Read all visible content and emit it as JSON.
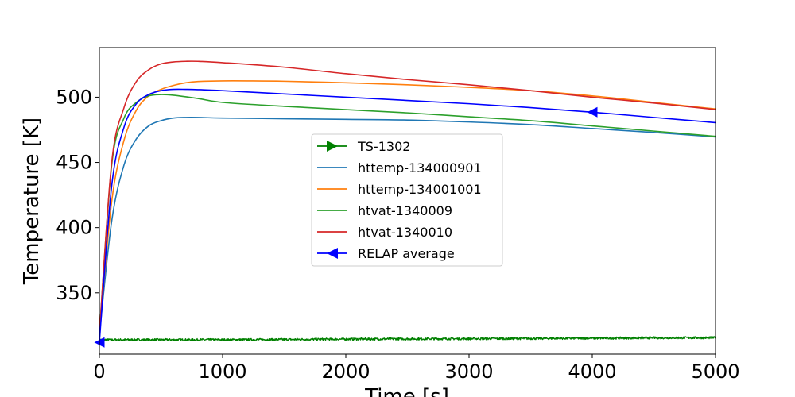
{
  "chart_data": {
    "type": "line",
    "title": "",
    "xlabel": "Time [s]",
    "ylabel": "Temperature [K]",
    "xlim": [
      0,
      5000
    ],
    "ylim": [
      303,
      538
    ],
    "xticks": [
      0,
      1000,
      2000,
      3000,
      4000,
      5000
    ],
    "yticks": [
      350,
      400,
      450,
      500
    ],
    "grid": false,
    "legend_position": "center",
    "series": [
      {
        "name": "TS-1302",
        "color": "#008000",
        "marker": "triangle-right",
        "noisy": true,
        "x": [
          0,
          500,
          1000,
          1500,
          2000,
          2500,
          3000,
          3500,
          4000,
          4500,
          5000
        ],
        "y": [
          314,
          314,
          314,
          314.2,
          314.5,
          314.7,
          314.8,
          315,
          315.2,
          315.5,
          315.6
        ]
      },
      {
        "name": "httemp-134000901",
        "color": "#1f77b4",
        "marker": "none",
        "x": [
          0,
          100,
          200,
          300,
          400,
          500,
          600,
          700,
          800,
          1000,
          1500,
          2000,
          2500,
          3000,
          3500,
          4000,
          4500,
          5000
        ],
        "y": [
          318,
          405,
          448,
          468,
          478,
          482,
          484,
          484.5,
          484.5,
          484,
          483.5,
          483,
          482.5,
          481,
          479,
          476,
          473,
          469.5
        ]
      },
      {
        "name": "httemp-134001001",
        "color": "#ff7f0e",
        "marker": "none",
        "x": [
          0,
          100,
          200,
          300,
          400,
          500,
          600,
          700,
          800,
          1000,
          1200,
          1500,
          2000,
          2500,
          3000,
          3500,
          4000,
          4500,
          5000
        ],
        "y": [
          318,
          420,
          467,
          490,
          501,
          506,
          509,
          511,
          512,
          512.5,
          512.5,
          512.2,
          511,
          509.5,
          507.5,
          505,
          501,
          496,
          491
        ]
      },
      {
        "name": "htvat-1340009",
        "color": "#2ca02c",
        "marker": "none",
        "x": [
          0,
          100,
          200,
          300,
          400,
          500,
          600,
          800,
          1000,
          1500,
          2000,
          2500,
          3000,
          3500,
          4000,
          4500,
          5000
        ],
        "y": [
          318,
          448,
          484,
          496,
          501,
          502,
          501.5,
          499,
          496,
          493,
          490.5,
          488,
          485,
          482,
          478,
          474,
          470
        ]
      },
      {
        "name": "htvat-1340010",
        "color": "#d62728",
        "marker": "none",
        "x": [
          0,
          100,
          200,
          300,
          400,
          500,
          600,
          700,
          800,
          1000,
          1500,
          2000,
          2500,
          3000,
          3500,
          4000,
          4500,
          5000
        ],
        "y": [
          318,
          450,
          492,
          512,
          521,
          525.5,
          527,
          527.5,
          527.5,
          526.5,
          523,
          518,
          513.5,
          509.5,
          505,
          500,
          495.5,
          490.5
        ]
      },
      {
        "name": "RELAP average",
        "color": "#0000ff",
        "marker": "triangle-left",
        "marker_x": [
          0,
          4000
        ],
        "x": [
          0,
          100,
          200,
          300,
          400,
          500,
          600,
          700,
          800,
          1000,
          1500,
          2000,
          2500,
          3000,
          3500,
          4000,
          4500,
          5000
        ],
        "y": [
          312,
          432,
          477,
          495,
          502,
          505,
          506,
          506,
          505.8,
          505,
          502.5,
          500,
          497.5,
          495,
          492,
          488.5,
          484.5,
          480.5
        ]
      }
    ]
  }
}
